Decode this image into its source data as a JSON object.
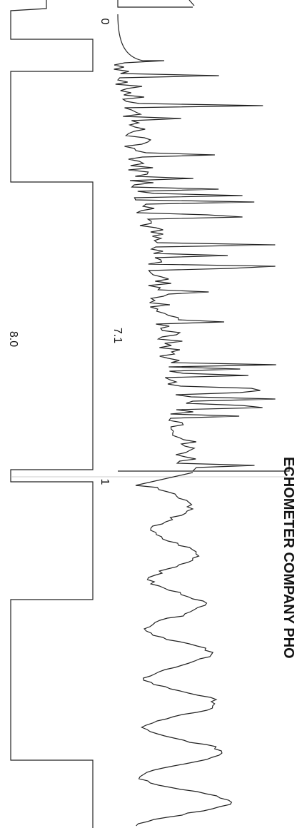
{
  "markers": [
    "0",
    "7.1",
    "8.0",
    "1"
  ],
  "header": "ECHOMETER COMPANY PHO"
}
